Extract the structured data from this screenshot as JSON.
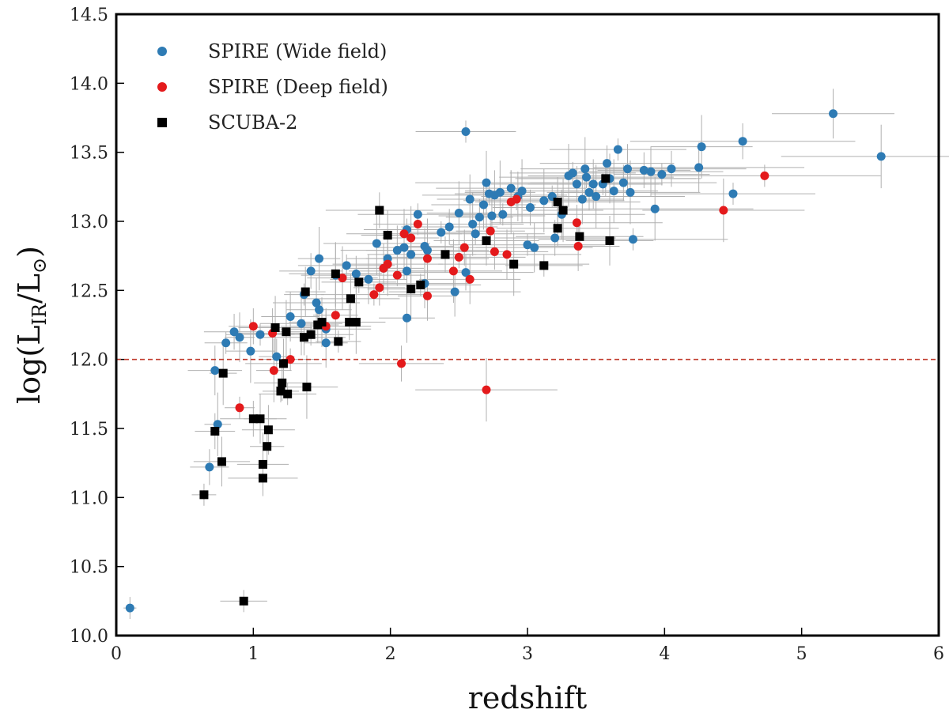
{
  "chart_data": {
    "type": "scatter",
    "xlabel": "redshift",
    "ylabel_main": "log(L",
    "ylabel_sub1": "IR",
    "ylabel_mid": "/L",
    "ylabel_sub2": "⊙",
    "ylabel_end": ")",
    "xlim": [
      0,
      6
    ],
    "ylim": [
      10.0,
      14.5
    ],
    "xticks": [
      "0",
      "1",
      "2",
      "3",
      "4",
      "5",
      "6"
    ],
    "yticks": [
      "10.0",
      "10.5",
      "11.0",
      "11.5",
      "12.0",
      "12.5",
      "13.0",
      "13.5",
      "14.0",
      "14.5"
    ],
    "grid": false,
    "legend_position": "top-left",
    "reference_line": {
      "y": 12.0,
      "style": "dashed",
      "color": "#c0392b"
    },
    "colors": {
      "wide": "#2e7bb4",
      "deep": "#e41a1c",
      "scuba": "#000000",
      "error": "#b0b0b0"
    },
    "series": [
      {
        "name": "SPIRE (Wide field)",
        "marker": "circle",
        "points": [
          [
            0.1,
            10.2
          ],
          [
            0.68,
            11.22
          ],
          [
            0.72,
            11.92
          ],
          [
            0.74,
            11.53
          ],
          [
            0.8,
            12.12
          ],
          [
            0.86,
            12.2
          ],
          [
            0.9,
            12.16
          ],
          [
            0.98,
            12.06
          ],
          [
            1.05,
            12.18
          ],
          [
            1.17,
            12.02
          ],
          [
            1.27,
            12.31
          ],
          [
            1.35,
            12.26
          ],
          [
            1.37,
            12.47
          ],
          [
            1.42,
            12.64
          ],
          [
            1.46,
            12.41
          ],
          [
            1.48,
            12.73
          ],
          [
            1.48,
            12.36
          ],
          [
            1.53,
            12.22
          ],
          [
            1.53,
            12.12
          ],
          [
            1.6,
            12.61
          ],
          [
            1.68,
            12.68
          ],
          [
            1.75,
            12.62
          ],
          [
            1.84,
            12.58
          ],
          [
            1.9,
            12.84
          ],
          [
            1.95,
            12.66
          ],
          [
            1.98,
            12.73
          ],
          [
            2.05,
            12.79
          ],
          [
            2.1,
            12.81
          ],
          [
            2.12,
            12.94
          ],
          [
            2.12,
            12.64
          ],
          [
            2.12,
            12.3
          ],
          [
            2.15,
            12.76
          ],
          [
            2.2,
            13.05
          ],
          [
            2.25,
            12.82
          ],
          [
            2.25,
            12.55
          ],
          [
            2.27,
            12.79
          ],
          [
            2.37,
            12.92
          ],
          [
            2.43,
            12.96
          ],
          [
            2.47,
            12.49
          ],
          [
            2.5,
            13.06
          ],
          [
            2.55,
            13.65
          ],
          [
            2.55,
            12.63
          ],
          [
            2.58,
            13.16
          ],
          [
            2.6,
            12.98
          ],
          [
            2.62,
            12.91
          ],
          [
            2.65,
            13.03
          ],
          [
            2.68,
            13.12
          ],
          [
            2.7,
            13.28
          ],
          [
            2.72,
            13.2
          ],
          [
            2.74,
            13.04
          ],
          [
            2.76,
            13.19
          ],
          [
            2.8,
            13.21
          ],
          [
            2.82,
            13.05
          ],
          [
            2.88,
            13.24
          ],
          [
            2.93,
            13.18
          ],
          [
            2.96,
            13.22
          ],
          [
            3.0,
            12.83
          ],
          [
            3.02,
            13.1
          ],
          [
            3.05,
            12.81
          ],
          [
            3.12,
            13.15
          ],
          [
            3.18,
            13.18
          ],
          [
            3.2,
            12.88
          ],
          [
            3.25,
            13.05
          ],
          [
            3.3,
            13.33
          ],
          [
            3.33,
            13.35
          ],
          [
            3.36,
            13.27
          ],
          [
            3.4,
            13.16
          ],
          [
            3.42,
            13.38
          ],
          [
            3.43,
            13.32
          ],
          [
            3.45,
            13.21
          ],
          [
            3.48,
            13.27
          ],
          [
            3.5,
            13.18
          ],
          [
            3.55,
            13.27
          ],
          [
            3.58,
            13.42
          ],
          [
            3.6,
            13.31
          ],
          [
            3.63,
            13.22
          ],
          [
            3.66,
            13.52
          ],
          [
            3.7,
            13.28
          ],
          [
            3.73,
            13.38
          ],
          [
            3.75,
            13.21
          ],
          [
            3.77,
            12.87
          ],
          [
            3.85,
            13.37
          ],
          [
            3.9,
            13.36
          ],
          [
            3.93,
            13.09
          ],
          [
            3.98,
            13.34
          ],
          [
            4.05,
            13.38
          ],
          [
            4.25,
            13.39
          ],
          [
            4.27,
            13.54
          ],
          [
            4.5,
            13.2
          ],
          [
            4.57,
            13.58
          ],
          [
            5.23,
            13.78
          ],
          [
            5.58,
            13.47
          ]
        ]
      },
      {
        "name": "SPIRE (Deep field)",
        "marker": "circle",
        "points": [
          [
            0.9,
            11.65
          ],
          [
            1.0,
            12.24
          ],
          [
            1.14,
            12.19
          ],
          [
            1.15,
            11.92
          ],
          [
            1.27,
            12.0
          ],
          [
            1.53,
            12.24
          ],
          [
            1.6,
            12.32
          ],
          [
            1.65,
            12.59
          ],
          [
            1.88,
            12.47
          ],
          [
            1.92,
            12.52
          ],
          [
            1.95,
            12.66
          ],
          [
            1.98,
            12.69
          ],
          [
            2.05,
            12.61
          ],
          [
            2.08,
            11.97
          ],
          [
            2.1,
            12.91
          ],
          [
            2.15,
            12.88
          ],
          [
            2.2,
            12.98
          ],
          [
            2.27,
            12.73
          ],
          [
            2.27,
            12.46
          ],
          [
            2.46,
            12.64
          ],
          [
            2.5,
            12.74
          ],
          [
            2.54,
            12.81
          ],
          [
            2.58,
            12.58
          ],
          [
            2.7,
            11.78
          ],
          [
            2.73,
            12.93
          ],
          [
            2.76,
            12.78
          ],
          [
            2.85,
            12.76
          ],
          [
            2.88,
            13.14
          ],
          [
            2.92,
            13.16
          ],
          [
            3.36,
            12.99
          ],
          [
            3.37,
            12.82
          ],
          [
            4.43,
            13.08
          ],
          [
            4.73,
            13.33
          ]
        ]
      },
      {
        "name": "SCUBA-2",
        "marker": "square",
        "points": [
          [
            0.64,
            11.02
          ],
          [
            0.72,
            11.48
          ],
          [
            0.77,
            11.26
          ],
          [
            0.78,
            11.9
          ],
          [
            0.93,
            10.25
          ],
          [
            1.0,
            11.57
          ],
          [
            1.05,
            11.57
          ],
          [
            1.07,
            11.24
          ],
          [
            1.07,
            11.14
          ],
          [
            1.1,
            11.37
          ],
          [
            1.11,
            11.49
          ],
          [
            1.16,
            12.23
          ],
          [
            1.2,
            11.77
          ],
          [
            1.21,
            11.83
          ],
          [
            1.22,
            11.97
          ],
          [
            1.24,
            12.2
          ],
          [
            1.25,
            11.75
          ],
          [
            1.37,
            12.16
          ],
          [
            1.38,
            12.49
          ],
          [
            1.39,
            11.8
          ],
          [
            1.42,
            12.18
          ],
          [
            1.47,
            12.25
          ],
          [
            1.5,
            12.27
          ],
          [
            1.6,
            12.62
          ],
          [
            1.62,
            12.13
          ],
          [
            1.7,
            12.27
          ],
          [
            1.71,
            12.44
          ],
          [
            1.75,
            12.27
          ],
          [
            1.77,
            12.56
          ],
          [
            1.92,
            13.08
          ],
          [
            1.98,
            12.9
          ],
          [
            2.15,
            12.51
          ],
          [
            2.22,
            12.54
          ],
          [
            2.4,
            12.76
          ],
          [
            2.7,
            12.86
          ],
          [
            2.9,
            12.69
          ],
          [
            3.12,
            12.68
          ],
          [
            3.22,
            12.95
          ],
          [
            3.22,
            13.14
          ],
          [
            3.26,
            13.08
          ],
          [
            3.38,
            12.89
          ],
          [
            3.57,
            13.31
          ],
          [
            3.6,
            12.86
          ]
        ]
      }
    ]
  }
}
